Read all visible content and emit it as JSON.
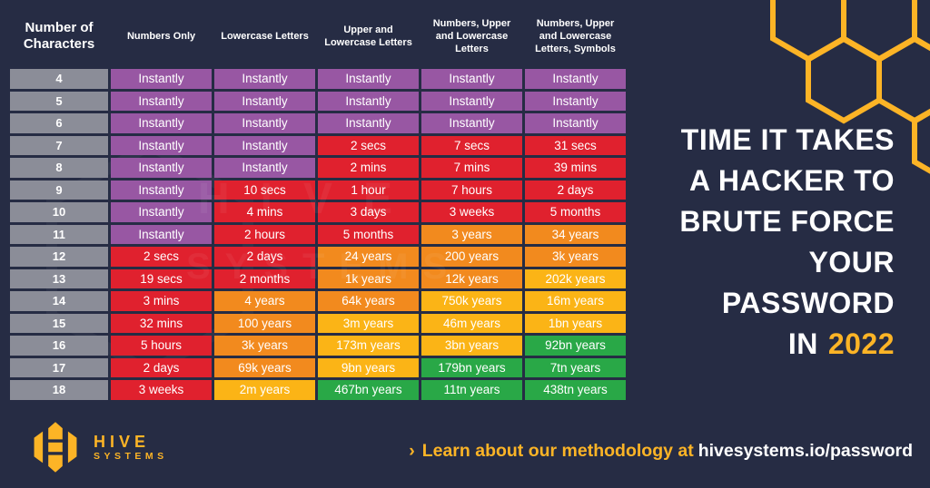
{
  "theme": {
    "colors": {
      "bg-navy": "#262C44",
      "accent-gold": "#FCB426",
      "cell-purple": "#9857A3",
      "cell-red": "#E0212E",
      "cell-orange": "#F28A1E",
      "cell-yellow": "#FBB416",
      "cell-green": "#29A847",
      "cell-gray": "#8B8D98",
      "text-white": "#FFFFFF"
    }
  },
  "table": {
    "headers": [
      "Number of Characters",
      "Numbers Only",
      "Lowercase Letters",
      "Upper and Lowercase Letters",
      "Numbers, Upper and Lowercase Letters",
      "Numbers, Upper and Lowercase Letters, Symbols"
    ],
    "rows": [
      {
        "chars": "4",
        "cells": [
          {
            "time": "Instantly",
            "color": "purple"
          },
          {
            "time": "Instantly",
            "color": "purple"
          },
          {
            "time": "Instantly",
            "color": "purple"
          },
          {
            "time": "Instantly",
            "color": "purple"
          },
          {
            "time": "Instantly",
            "color": "purple"
          }
        ]
      },
      {
        "chars": "5",
        "cells": [
          {
            "time": "Instantly",
            "color": "purple"
          },
          {
            "time": "Instantly",
            "color": "purple"
          },
          {
            "time": "Instantly",
            "color": "purple"
          },
          {
            "time": "Instantly",
            "color": "purple"
          },
          {
            "time": "Instantly",
            "color": "purple"
          }
        ]
      },
      {
        "chars": "6",
        "cells": [
          {
            "time": "Instantly",
            "color": "purple"
          },
          {
            "time": "Instantly",
            "color": "purple"
          },
          {
            "time": "Instantly",
            "color": "purple"
          },
          {
            "time": "Instantly",
            "color": "purple"
          },
          {
            "time": "Instantly",
            "color": "purple"
          }
        ]
      },
      {
        "chars": "7",
        "cells": [
          {
            "time": "Instantly",
            "color": "purple"
          },
          {
            "time": "Instantly",
            "color": "purple"
          },
          {
            "time": "2 secs",
            "color": "red"
          },
          {
            "time": "7 secs",
            "color": "red"
          },
          {
            "time": "31 secs",
            "color": "red"
          }
        ]
      },
      {
        "chars": "8",
        "cells": [
          {
            "time": "Instantly",
            "color": "purple"
          },
          {
            "time": "Instantly",
            "color": "purple"
          },
          {
            "time": "2 mins",
            "color": "red"
          },
          {
            "time": "7 mins",
            "color": "red"
          },
          {
            "time": "39 mins",
            "color": "red"
          }
        ]
      },
      {
        "chars": "9",
        "cells": [
          {
            "time": "Instantly",
            "color": "purple"
          },
          {
            "time": "10 secs",
            "color": "red"
          },
          {
            "time": "1 hour",
            "color": "red"
          },
          {
            "time": "7 hours",
            "color": "red"
          },
          {
            "time": "2 days",
            "color": "red"
          }
        ]
      },
      {
        "chars": "10",
        "cells": [
          {
            "time": "Instantly",
            "color": "purple"
          },
          {
            "time": "4 mins",
            "color": "red"
          },
          {
            "time": "3 days",
            "color": "red"
          },
          {
            "time": "3 weeks",
            "color": "red"
          },
          {
            "time": "5 months",
            "color": "red"
          }
        ]
      },
      {
        "chars": "11",
        "cells": [
          {
            "time": "Instantly",
            "color": "purple"
          },
          {
            "time": "2 hours",
            "color": "red"
          },
          {
            "time": "5 months",
            "color": "red"
          },
          {
            "time": "3 years",
            "color": "orange"
          },
          {
            "time": "34 years",
            "color": "orange"
          }
        ]
      },
      {
        "chars": "12",
        "cells": [
          {
            "time": "2 secs",
            "color": "red"
          },
          {
            "time": "2 days",
            "color": "red"
          },
          {
            "time": "24 years",
            "color": "orange"
          },
          {
            "time": "200 years",
            "color": "orange"
          },
          {
            "time": "3k years",
            "color": "orange"
          }
        ]
      },
      {
        "chars": "13",
        "cells": [
          {
            "time": "19 secs",
            "color": "red"
          },
          {
            "time": "2 months",
            "color": "red"
          },
          {
            "time": "1k years",
            "color": "orange"
          },
          {
            "time": "12k years",
            "color": "orange"
          },
          {
            "time": "202k years",
            "color": "yellow"
          }
        ]
      },
      {
        "chars": "14",
        "cells": [
          {
            "time": "3 mins",
            "color": "red"
          },
          {
            "time": "4 years",
            "color": "orange"
          },
          {
            "time": "64k years",
            "color": "orange"
          },
          {
            "time": "750k years",
            "color": "yellow"
          },
          {
            "time": "16m years",
            "color": "yellow"
          }
        ]
      },
      {
        "chars": "15",
        "cells": [
          {
            "time": "32 mins",
            "color": "red"
          },
          {
            "time": "100 years",
            "color": "orange"
          },
          {
            "time": "3m years",
            "color": "yellow"
          },
          {
            "time": "46m years",
            "color": "yellow"
          },
          {
            "time": "1bn years",
            "color": "yellow"
          }
        ]
      },
      {
        "chars": "16",
        "cells": [
          {
            "time": "5 hours",
            "color": "red"
          },
          {
            "time": "3k years",
            "color": "orange"
          },
          {
            "time": "173m years",
            "color": "yellow"
          },
          {
            "time": "3bn years",
            "color": "yellow"
          },
          {
            "time": "92bn years",
            "color": "green"
          }
        ]
      },
      {
        "chars": "17",
        "cells": [
          {
            "time": "2 days",
            "color": "red"
          },
          {
            "time": "69k years",
            "color": "orange"
          },
          {
            "time": "9bn years",
            "color": "yellow"
          },
          {
            "time": "179bn years",
            "color": "green"
          },
          {
            "time": "7tn years",
            "color": "green"
          }
        ]
      },
      {
        "chars": "18",
        "cells": [
          {
            "time": "3 weeks",
            "color": "red"
          },
          {
            "time": "2m years",
            "color": "yellow"
          },
          {
            "time": "467bn years",
            "color": "green"
          },
          {
            "time": "11tn years",
            "color": "green"
          },
          {
            "time": "438tn years",
            "color": "green"
          }
        ]
      }
    ]
  },
  "watermark": {
    "line1": "HIVE",
    "line2": "SYSTEMS"
  },
  "headline": {
    "lines": [
      "TIME IT TAKES",
      "A HACKER TO",
      "BRUTE FORCE",
      "YOUR",
      "PASSWORD"
    ],
    "final_prefix": "IN",
    "year": "2022"
  },
  "footer": {
    "brand": "HIVE",
    "brand_sub": "SYSTEMS",
    "cta_chevron": "›",
    "cta_text": "Learn about our methodology at",
    "cta_link": "hivesystems.io/password"
  },
  "chart_data": {
    "type": "table",
    "title": "TIME IT TAKES A HACKER TO BRUTE FORCE YOUR PASSWORD IN 2022",
    "columns": [
      "Number of Characters",
      "Numbers Only",
      "Lowercase Letters",
      "Upper and Lowercase Letters",
      "Numbers, Upper and Lowercase Letters",
      "Numbers, Upper and Lowercase Letters, Symbols"
    ],
    "rows": [
      [
        "4",
        "Instantly",
        "Instantly",
        "Instantly",
        "Instantly",
        "Instantly"
      ],
      [
        "5",
        "Instantly",
        "Instantly",
        "Instantly",
        "Instantly",
        "Instantly"
      ],
      [
        "6",
        "Instantly",
        "Instantly",
        "Instantly",
        "Instantly",
        "Instantly"
      ],
      [
        "7",
        "Instantly",
        "Instantly",
        "2 secs",
        "7 secs",
        "31 secs"
      ],
      [
        "8",
        "Instantly",
        "Instantly",
        "2 mins",
        "7 mins",
        "39 mins"
      ],
      [
        "9",
        "Instantly",
        "10 secs",
        "1 hour",
        "7 hours",
        "2 days"
      ],
      [
        "10",
        "Instantly",
        "4 mins",
        "3 days",
        "3 weeks",
        "5 months"
      ],
      [
        "11",
        "Instantly",
        "2 hours",
        "5 months",
        "3 years",
        "34 years"
      ],
      [
        "12",
        "2 secs",
        "2 days",
        "24 years",
        "200 years",
        "3k years"
      ],
      [
        "13",
        "19 secs",
        "2 months",
        "1k years",
        "12k years",
        "202k years"
      ],
      [
        "14",
        "3 mins",
        "4 years",
        "64k years",
        "750k years",
        "16m years"
      ],
      [
        "15",
        "32 mins",
        "100 years",
        "3m years",
        "46m years",
        "1bn years"
      ],
      [
        "16",
        "5 hours",
        "3k years",
        "173m years",
        "3bn years",
        "92bn years"
      ],
      [
        "17",
        "2 days",
        "69k years",
        "9bn years",
        "179bn years",
        "7tn years"
      ],
      [
        "18",
        "3 weeks",
        "2m years",
        "467bn years",
        "11tn years",
        "438tn years"
      ]
    ],
    "cell_colors": [
      [
        "purple",
        "purple",
        "purple",
        "purple",
        "purple"
      ],
      [
        "purple",
        "purple",
        "purple",
        "purple",
        "purple"
      ],
      [
        "purple",
        "purple",
        "purple",
        "purple",
        "purple"
      ],
      [
        "purple",
        "purple",
        "red",
        "red",
        "red"
      ],
      [
        "purple",
        "purple",
        "red",
        "red",
        "red"
      ],
      [
        "purple",
        "red",
        "red",
        "red",
        "red"
      ],
      [
        "purple",
        "red",
        "red",
        "red",
        "red"
      ],
      [
        "purple",
        "red",
        "red",
        "orange",
        "orange"
      ],
      [
        "red",
        "red",
        "orange",
        "orange",
        "orange"
      ],
      [
        "red",
        "red",
        "orange",
        "orange",
        "yellow"
      ],
      [
        "red",
        "orange",
        "orange",
        "yellow",
        "yellow"
      ],
      [
        "red",
        "orange",
        "yellow",
        "yellow",
        "yellow"
      ],
      [
        "red",
        "orange",
        "yellow",
        "yellow",
        "green"
      ],
      [
        "red",
        "orange",
        "yellow",
        "green",
        "green"
      ],
      [
        "red",
        "yellow",
        "green",
        "green",
        "green"
      ]
    ],
    "legend_position": "none",
    "grid": false
  }
}
